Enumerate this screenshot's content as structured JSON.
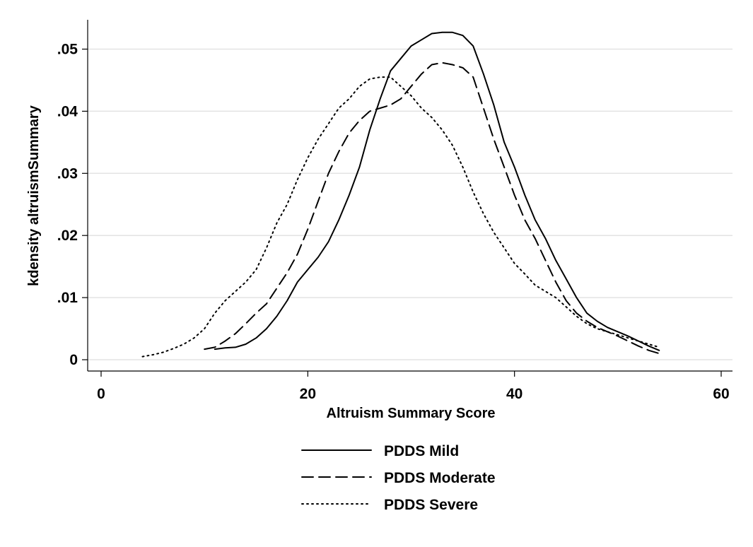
{
  "chart_data": {
    "type": "line",
    "title": "",
    "xlabel": "Altruism Summary Score",
    "ylabel": "kdensity altruismSummary",
    "xlim": [
      0,
      60
    ],
    "ylim": [
      0,
      0.055
    ],
    "xticks": [
      0,
      20,
      40,
      60
    ],
    "xtick_labels": [
      "0",
      "20",
      "40",
      "60"
    ],
    "yticks": [
      0,
      0.01,
      0.02,
      0.03,
      0.04,
      0.05
    ],
    "ytick_labels": [
      "0",
      ".01",
      ".02",
      ".03",
      ".04",
      ".05"
    ],
    "grid": true,
    "legend_position": "bottom",
    "series": [
      {
        "name": "PDDS Mild",
        "dash": "solid",
        "x": [
          11,
          12,
          13,
          14,
          15,
          16,
          17,
          18,
          19,
          20,
          21,
          22,
          23,
          24,
          25,
          26,
          27,
          28,
          29,
          30,
          31,
          32,
          33,
          34,
          35,
          36,
          37,
          38,
          39,
          40,
          41,
          42,
          43,
          44,
          45,
          46,
          47,
          48,
          49,
          50,
          51,
          52,
          53,
          54
        ],
        "y": [
          0.0017,
          0.0019,
          0.002,
          0.0025,
          0.0035,
          0.005,
          0.007,
          0.0095,
          0.0125,
          0.0145,
          0.0165,
          0.019,
          0.0225,
          0.0265,
          0.031,
          0.037,
          0.042,
          0.0465,
          0.0485,
          0.0505,
          0.0515,
          0.0525,
          0.0527,
          0.0527,
          0.0522,
          0.0505,
          0.046,
          0.041,
          0.035,
          0.031,
          0.0265,
          0.0225,
          0.0195,
          0.016,
          0.013,
          0.01,
          0.0075,
          0.0062,
          0.0052,
          0.0045,
          0.0038,
          0.003,
          0.0022,
          0.0015
        ]
      },
      {
        "name": "PDDS Moderate",
        "dash": "dashed",
        "x": [
          10,
          11,
          12,
          13,
          14,
          15,
          16,
          17,
          18,
          19,
          20,
          21,
          22,
          23,
          24,
          25,
          26,
          27,
          28,
          29,
          30,
          31,
          32,
          33,
          34,
          35,
          36,
          37,
          38,
          39,
          40,
          41,
          42,
          43,
          44,
          45,
          46,
          47,
          48,
          49,
          50,
          51,
          52,
          53,
          54
        ],
        "y": [
          0.0017,
          0.002,
          0.003,
          0.0042,
          0.0058,
          0.0075,
          0.009,
          0.0115,
          0.014,
          0.017,
          0.021,
          0.0255,
          0.03,
          0.0335,
          0.0365,
          0.0385,
          0.04,
          0.0405,
          0.041,
          0.042,
          0.044,
          0.046,
          0.0475,
          0.0478,
          0.0475,
          0.047,
          0.0455,
          0.0405,
          0.0355,
          0.031,
          0.0265,
          0.0225,
          0.0195,
          0.016,
          0.0125,
          0.0095,
          0.0075,
          0.0062,
          0.0052,
          0.0045,
          0.0038,
          0.003,
          0.0022,
          0.0015,
          0.001
        ]
      },
      {
        "name": "PDDS Severe",
        "dash": "dotted",
        "x": [
          4,
          5,
          6,
          7,
          8,
          9,
          10,
          11,
          12,
          13,
          14,
          15,
          16,
          17,
          18,
          19,
          20,
          21,
          22,
          23,
          24,
          25,
          26,
          27,
          28,
          29,
          30,
          31,
          32,
          33,
          34,
          35,
          36,
          37,
          38,
          39,
          40,
          41,
          42,
          43,
          44,
          45,
          46,
          47,
          48,
          49,
          50,
          51,
          52,
          53,
          54
        ],
        "y": [
          0.0005,
          0.0008,
          0.0012,
          0.0018,
          0.0025,
          0.0035,
          0.005,
          0.0075,
          0.0095,
          0.011,
          0.0125,
          0.0145,
          0.018,
          0.022,
          0.025,
          0.029,
          0.0325,
          0.0355,
          0.038,
          0.0405,
          0.042,
          0.044,
          0.0452,
          0.0455,
          0.0455,
          0.044,
          0.0425,
          0.0405,
          0.039,
          0.037,
          0.0345,
          0.031,
          0.027,
          0.0235,
          0.0205,
          0.018,
          0.0155,
          0.0138,
          0.012,
          0.011,
          0.01,
          0.0085,
          0.007,
          0.0058,
          0.005,
          0.0045,
          0.004,
          0.0035,
          0.003,
          0.0025,
          0.002
        ]
      }
    ]
  }
}
